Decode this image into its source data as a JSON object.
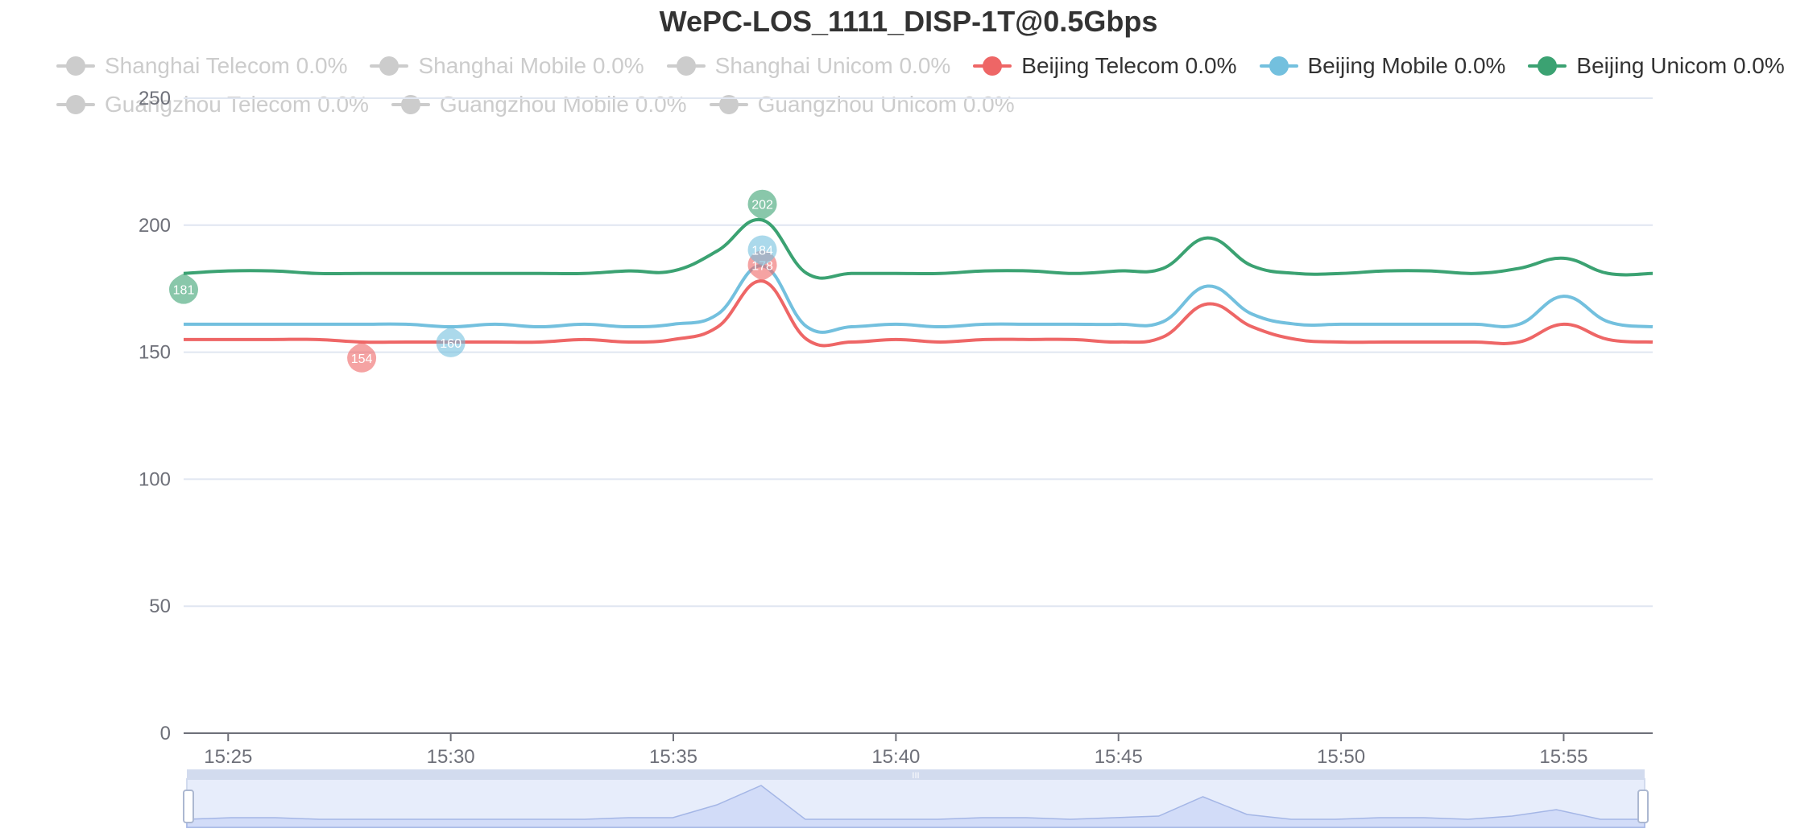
{
  "chart_data": {
    "type": "line",
    "title": "WePC-LOS_1111_DISP-1T@0.5Gbps",
    "xlabel": "",
    "ylabel": "",
    "ylim": [
      0,
      250
    ],
    "yticks": [
      0,
      50,
      100,
      150,
      200,
      250
    ],
    "x_range_minutes": [
      "15:24",
      "15:57"
    ],
    "xticks": [
      "15:25",
      "15:30",
      "15:35",
      "15:40",
      "15:45",
      "15:50",
      "15:55"
    ],
    "grid": true,
    "legend_position": "top",
    "x": [
      "15:24",
      "15:25",
      "15:26",
      "15:27",
      "15:28",
      "15:29",
      "15:30",
      "15:31",
      "15:32",
      "15:33",
      "15:34",
      "15:35",
      "15:36",
      "15:37",
      "15:38",
      "15:39",
      "15:40",
      "15:41",
      "15:42",
      "15:43",
      "15:44",
      "15:45",
      "15:46",
      "15:47",
      "15:48",
      "15:49",
      "15:50",
      "15:51",
      "15:52",
      "15:53",
      "15:54",
      "15:55",
      "15:56",
      "15:57"
    ],
    "legend": [
      {
        "label": "Shanghai Telecom 0.0%",
        "color": "#cccccc",
        "active": false
      },
      {
        "label": "Shanghai Mobile 0.0%",
        "color": "#cccccc",
        "active": false
      },
      {
        "label": "Shanghai Unicom 0.0%",
        "color": "#cccccc",
        "active": false
      },
      {
        "label": "Beijing Telecom 0.0%",
        "color": "#ee6666",
        "active": true
      },
      {
        "label": "Beijing Mobile 0.0%",
        "color": "#73c0de",
        "active": true
      },
      {
        "label": "Beijing Unicom 0.0%",
        "color": "#3ba272",
        "active": true
      },
      {
        "label": "Guangzhou Telecom 0.0%",
        "color": "#cccccc",
        "active": false
      },
      {
        "label": "Guangzhou Mobile 0.0%",
        "color": "#cccccc",
        "active": false
      },
      {
        "label": "Guangzhou Unicom 0.0%",
        "color": "#cccccc",
        "active": false
      }
    ],
    "series": [
      {
        "name": "Beijing Telecom",
        "color": "#ee6666",
        "values": [
          155,
          155,
          155,
          155,
          154,
          154,
          154,
          154,
          154,
          155,
          154,
          155,
          160,
          178,
          155,
          154,
          155,
          154,
          155,
          155,
          155,
          154,
          156,
          169,
          160,
          155,
          154,
          154,
          154,
          154,
          154,
          161,
          155,
          154
        ],
        "markPoints": [
          {
            "label": "178",
            "x": "15:37",
            "value": 178,
            "type": "max"
          },
          {
            "label": "154",
            "x": "15:28",
            "value": 154,
            "type": "min"
          }
        ]
      },
      {
        "name": "Beijing Mobile",
        "color": "#73c0de",
        "values": [
          161,
          161,
          161,
          161,
          161,
          161,
          160,
          161,
          160,
          161,
          160,
          161,
          165,
          184,
          160,
          160,
          161,
          160,
          161,
          161,
          161,
          161,
          162,
          176,
          165,
          161,
          161,
          161,
          161,
          161,
          161,
          172,
          162,
          160
        ],
        "markPoints": [
          {
            "label": "184",
            "x": "15:37",
            "value": 184,
            "type": "max"
          },
          {
            "label": "160",
            "x": "15:30",
            "value": 160,
            "type": "min"
          }
        ]
      },
      {
        "name": "Beijing Unicom",
        "color": "#3ba272",
        "values": [
          181,
          182,
          182,
          181,
          181,
          181,
          181,
          181,
          181,
          181,
          182,
          182,
          190,
          202,
          181,
          181,
          181,
          181,
          182,
          182,
          181,
          182,
          183,
          195,
          184,
          181,
          181,
          182,
          182,
          181,
          183,
          187,
          181,
          181
        ],
        "markPoints": [
          {
            "label": "202",
            "x": "15:37",
            "value": 202,
            "type": "max"
          },
          {
            "label": "181",
            "x": "15:24",
            "value": 181,
            "type": "min"
          }
        ]
      }
    ]
  },
  "data_zoom": {
    "handle_label": "III"
  }
}
